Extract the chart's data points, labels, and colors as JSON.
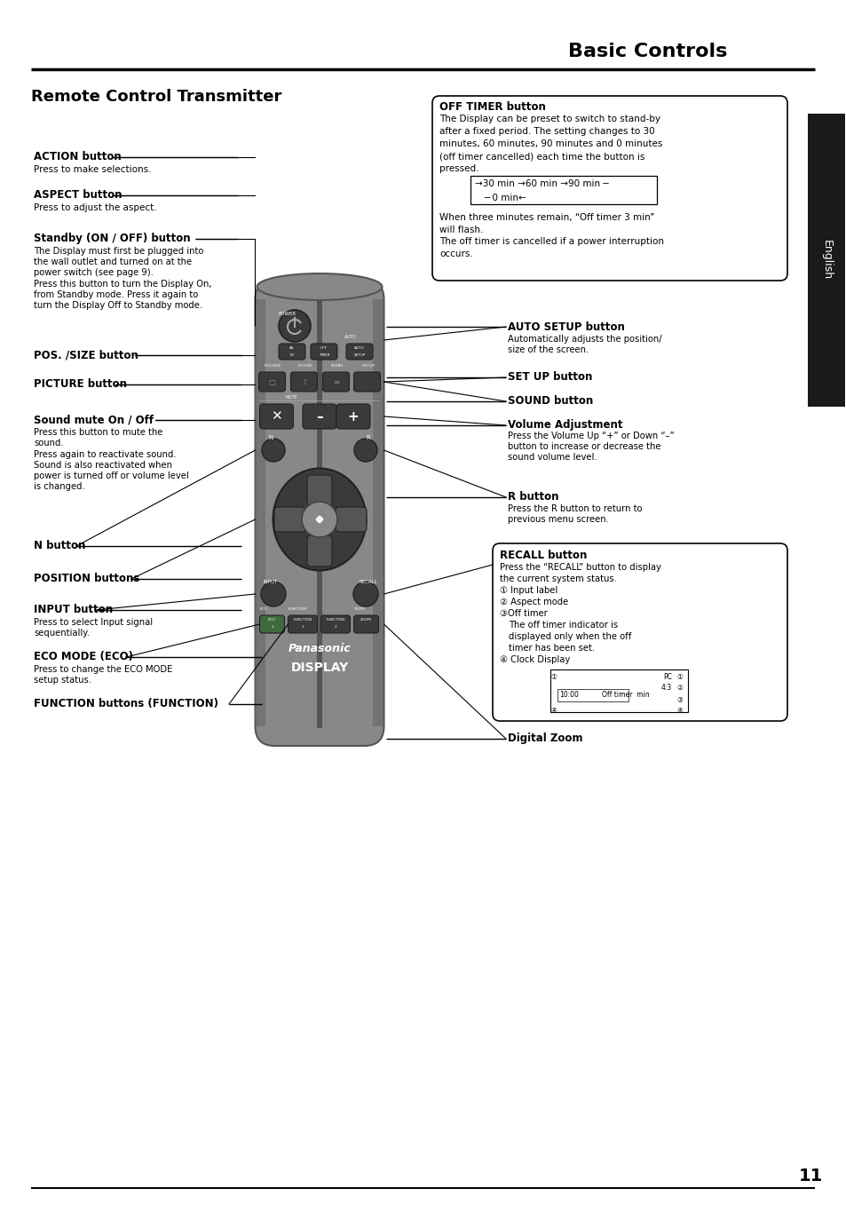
{
  "title": "Basic Controls",
  "section_title": "Remote Control Transmitter",
  "bg_color": "#ffffff",
  "text_color": "#000000",
  "sidebar_color": "#1a1a1a",
  "sidebar_text": "English",
  "page_number": "11",
  "remote_color": "#777777",
  "remote_dark": "#3a3a3a",
  "remote_button_color": "#444444",
  "remote_highlight": "#666666"
}
